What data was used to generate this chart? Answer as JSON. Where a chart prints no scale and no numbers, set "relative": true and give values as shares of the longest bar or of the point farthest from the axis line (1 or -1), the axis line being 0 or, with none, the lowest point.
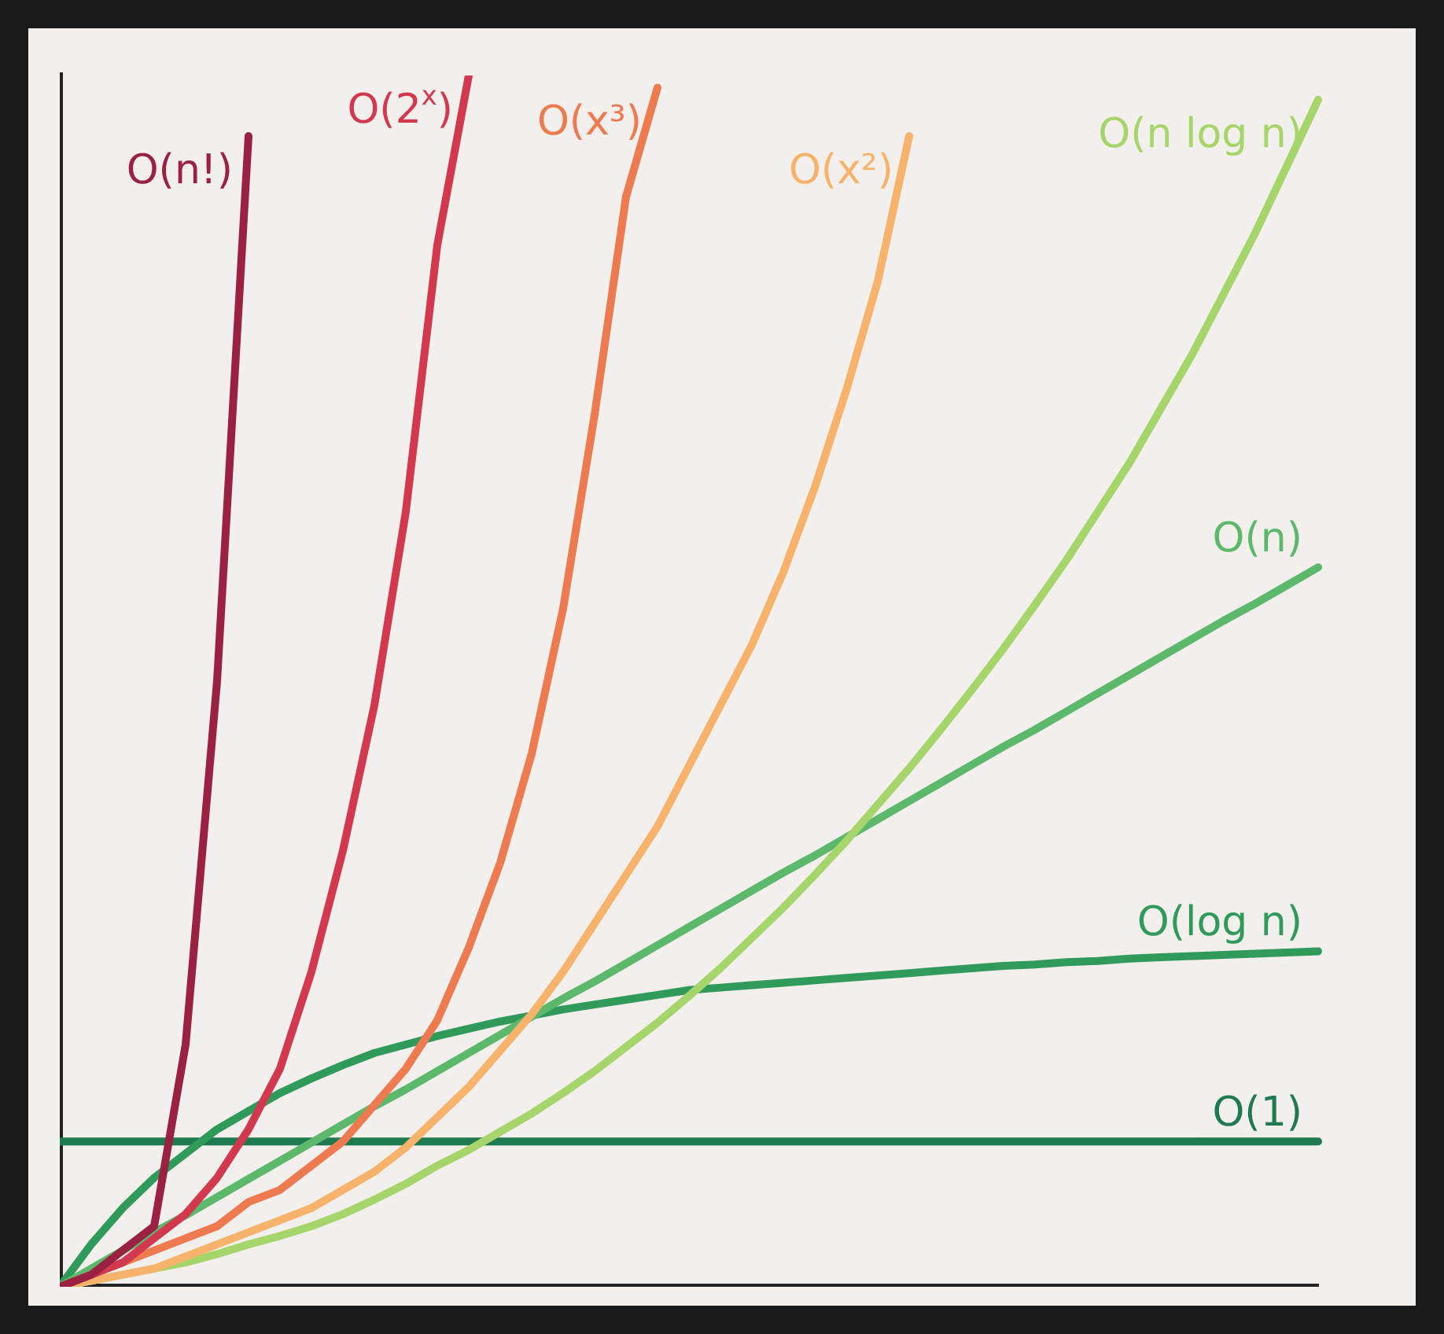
{
  "chart_data": {
    "type": "line",
    "relative": true,
    "legend": false,
    "grid": false,
    "marker": "none",
    "categories": [
      null,
      null,
      null,
      null,
      null,
      null,
      null,
      null,
      null,
      null,
      null,
      null,
      null,
      null,
      null,
      null,
      null,
      null,
      null,
      null,
      null,
      null,
      null,
      null,
      null,
      null,
      null,
      null,
      null,
      null,
      null,
      null,
      null,
      null,
      null,
      null,
      null,
      null,
      null,
      null,
      null
    ],
    "series": [
      {
        "name": "O(n!)",
        "color": "#9b2143",
        "values": [
          0,
          0.01,
          0.03,
          0.05,
          0.2,
          0.5,
          0.95,
          null,
          null,
          null,
          null,
          null,
          null,
          null,
          null,
          null,
          null,
          null,
          null,
          null,
          null,
          null,
          null,
          null,
          null,
          null,
          null,
          null,
          null,
          null,
          null,
          null,
          null,
          null,
          null,
          null,
          null,
          null,
          null,
          null,
          null
        ]
      },
      {
        "name": "O(2$^{x}$)",
        "color": "#d2394f",
        "values": [
          0,
          0.01,
          0.02,
          0.04,
          0.06,
          0.09,
          0.13,
          0.18,
          0.26,
          0.36,
          0.48,
          0.64,
          0.86,
          1,
          null,
          null,
          null,
          null,
          null,
          null,
          null,
          null,
          null,
          null,
          null,
          null,
          null,
          null,
          null,
          null,
          null,
          null,
          null,
          null,
          null,
          null,
          null,
          null,
          null,
          null,
          null
        ]
      },
      {
        "name": "O(x³)",
        "color": "#ee7a4f",
        "values": [
          0,
          0.01,
          0.02,
          0.03,
          0.04,
          0.05,
          0.07,
          0.08,
          0.1,
          0.12,
          0.15,
          0.18,
          0.22,
          0.28,
          0.35,
          0.44,
          0.56,
          0.72,
          0.9,
          0.99,
          null,
          null,
          null,
          null,
          null,
          null,
          null,
          null,
          null,
          null,
          null,
          null,
          null,
          null,
          null,
          null,
          null,
          null,
          null,
          null,
          null
        ]
      },
      {
        "name": "O(x²)",
        "color": "#f7b36b",
        "values": [
          0,
          0.005,
          0.01,
          0.015,
          0.025,
          0.035,
          0.045,
          0.055,
          0.065,
          0.08,
          0.095,
          0.115,
          0.14,
          0.165,
          0.195,
          0.225,
          0.26,
          0.3,
          0.34,
          0.38,
          0.43,
          0.48,
          0.53,
          0.59,
          0.66,
          0.74,
          0.83,
          0.95,
          null,
          null,
          null,
          null,
          null,
          null,
          null,
          null,
          null,
          null,
          null,
          null,
          null
        ]
      },
      {
        "name": "O(n log n)",
        "color": "#a6d66b",
        "values": [
          0,
          0.005,
          0.01,
          0.015,
          0.02,
          0.027,
          0.035,
          0.042,
          0.05,
          0.06,
          0.072,
          0.085,
          0.1,
          0.113,
          0.128,
          0.143,
          0.16,
          0.178,
          0.198,
          0.218,
          0.24,
          0.263,
          0.288,
          0.313,
          0.34,
          0.368,
          0.398,
          0.428,
          0.46,
          0.493,
          0.527,
          0.563,
          0.6,
          0.64,
          0.68,
          0.725,
          0.77,
          0.82,
          0.87,
          0.925,
          0.98
        ]
      },
      {
        "name": "O(n)",
        "color": "#5cb86a",
        "values": [
          0,
          0.015,
          0.03,
          0.045,
          0.059,
          0.074,
          0.089,
          0.104,
          0.119,
          0.134,
          0.149,
          0.163,
          0.178,
          0.193,
          0.208,
          0.223,
          0.238,
          0.252,
          0.267,
          0.282,
          0.297,
          0.312,
          0.327,
          0.342,
          0.356,
          0.371,
          0.386,
          0.401,
          0.416,
          0.431,
          0.446,
          0.46,
          0.475,
          0.49,
          0.505,
          0.52,
          0.535,
          0.55,
          0.564,
          0.579,
          0.594
        ]
      },
      {
        "name": "O(log n)",
        "color": "#2f9a5a",
        "values": [
          0,
          0.035,
          0.065,
          0.09,
          0.11,
          0.13,
          0.145,
          0.16,
          0.172,
          0.183,
          0.193,
          0.2,
          0.207,
          0.213,
          0.219,
          0.224,
          0.229,
          0.233,
          0.237,
          0.241,
          0.245,
          0.247,
          0.249,
          0.251,
          0.253,
          0.255,
          0.257,
          0.259,
          0.261,
          0.263,
          0.265,
          0.266,
          0.268,
          0.269,
          0.271,
          0.272,
          0.273,
          0.274,
          0.275,
          0.276,
          0.277
        ]
      },
      {
        "name": "O(1)",
        "color": "#1f7a4f",
        "values": [
          0.12,
          0.12,
          0.12,
          0.12,
          0.12,
          0.12,
          0.12,
          0.12,
          0.12,
          0.12,
          0.12,
          0.12,
          0.12,
          0.12,
          0.12,
          0.12,
          0.12,
          0.12,
          0.12,
          0.12,
          0.12,
          0.12,
          0.12,
          0.12,
          0.12,
          0.12,
          0.12,
          0.12,
          0.12,
          0.12,
          0.12,
          0.12,
          0.12,
          0.12,
          0.12,
          0.12,
          0.12,
          0.12,
          0.12,
          0.12,
          0.12
        ]
      }
    ]
  }
}
